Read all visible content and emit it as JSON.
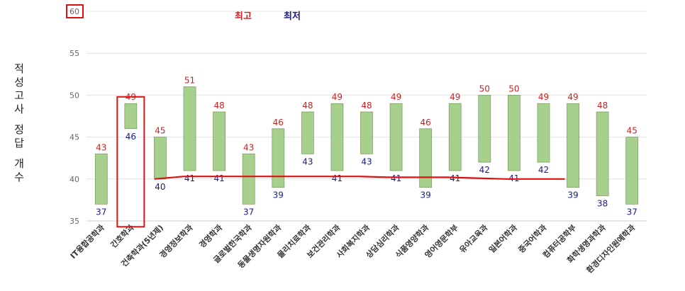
{
  "chart_data": {
    "type": "floating-bar",
    "title": "",
    "ylabel_lines": [
      "적성고사",
      "정답",
      "개수"
    ],
    "ylim": [
      35,
      60
    ],
    "yticks": [
      35,
      40,
      45,
      50,
      55,
      60
    ],
    "grid": true,
    "legend": {
      "max_label": "최고",
      "min_label": "최저",
      "max_color": "#cc2222",
      "min_color": "#1a1a8c"
    },
    "bar_color": "#a8d08d",
    "bar_border": "#7f9f6a",
    "categories": [
      "IT융합공학과",
      "간호학과",
      "건축학과(5년제)",
      "경영정보학과",
      "경영학과",
      "글로벌한국학과",
      "동물생명자원학과",
      "물리치료학과",
      "보건관리학과",
      "사회복지학과",
      "상담심리학과",
      "식품영양학과",
      "영어영문학부",
      "유아교육과",
      "일본어학과",
      "중국어학과",
      "컴퓨터공학부",
      "화학생명과학과",
      "환경디자인원예학과"
    ],
    "max": [
      43,
      49,
      45,
      51,
      48,
      43,
      46,
      48,
      49,
      48,
      49,
      46,
      49,
      50,
      50,
      49,
      49,
      48,
      45
    ],
    "min": [
      37,
      46,
      40,
      41,
      41,
      37,
      39,
      43,
      41,
      43,
      41,
      39,
      41,
      42,
      41,
      42,
      39,
      38,
      37
    ],
    "trend_line_color": "#dd1111",
    "trend_line": [
      40,
      40.3,
      40.3,
      40.3,
      40.3,
      40.3,
      40.3,
      40.3,
      40.2,
      40.2,
      40.2,
      40.1,
      40.0,
      40.0,
      40.0
    ],
    "highlight": {
      "category_index": 1,
      "ytick": 60,
      "color": "#dd1111"
    }
  }
}
